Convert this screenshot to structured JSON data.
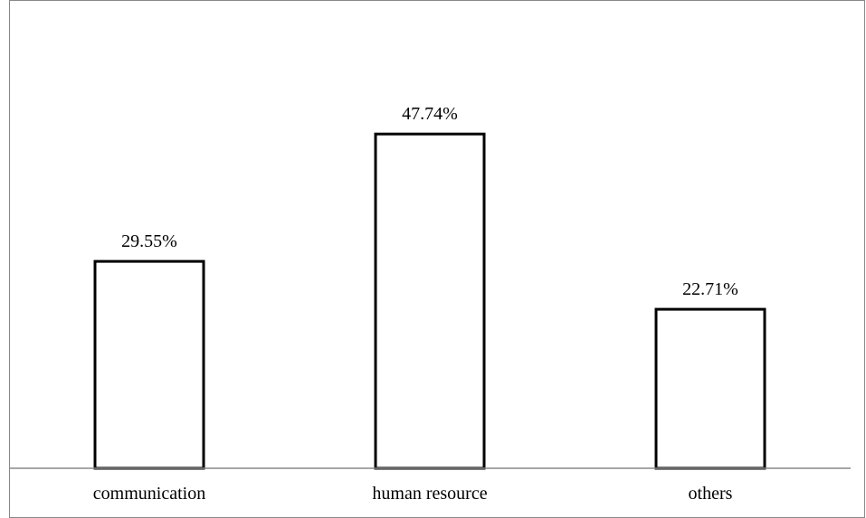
{
  "chart_data": {
    "type": "bar",
    "categories": [
      "communication",
      "human resource",
      "others"
    ],
    "values": [
      29.55,
      47.74,
      22.71
    ],
    "value_labels": [
      "29.55%",
      "47.74%",
      "22.71%"
    ],
    "title": "",
    "xlabel": "",
    "ylabel": "",
    "ylim": [
      0,
      55
    ],
    "grid": false,
    "legend": "none",
    "bar_fill": "#ffffff",
    "bar_stroke": "#000000",
    "axis_color": "#888888",
    "border_color": "#888888"
  }
}
